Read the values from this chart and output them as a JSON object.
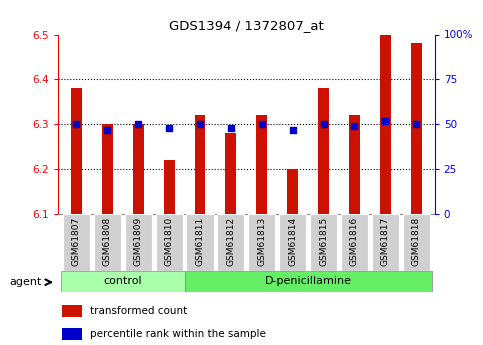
{
  "title": "GDS1394 / 1372807_at",
  "samples": [
    "GSM61807",
    "GSM61808",
    "GSM61809",
    "GSM61810",
    "GSM61811",
    "GSM61812",
    "GSM61813",
    "GSM61814",
    "GSM61815",
    "GSM61816",
    "GSM61817",
    "GSM61818"
  ],
  "transformed_counts": [
    6.38,
    6.3,
    6.3,
    6.22,
    6.32,
    6.28,
    6.32,
    6.2,
    6.38,
    6.32,
    6.5,
    6.48
  ],
  "percentile_ranks": [
    50,
    47,
    50,
    48,
    50,
    48,
    50,
    47,
    50,
    49,
    52,
    50
  ],
  "y_min": 6.1,
  "y_max": 6.5,
  "y_ticks": [
    6.1,
    6.2,
    6.3,
    6.4,
    6.5
  ],
  "y2_ticks": [
    0,
    25,
    50,
    75,
    100
  ],
  "y2_tick_labels": [
    "0",
    "25",
    "50",
    "75",
    "100%"
  ],
  "bar_color": "#cc1100",
  "dot_color": "#0000cc",
  "n_control": 4,
  "n_treatment": 8,
  "control_label": "control",
  "treatment_label": "D-penicillamine",
  "agent_label": "agent",
  "legend_bar_label": "transformed count",
  "legend_dot_label": "percentile rank within the sample",
  "control_bg": "#aaffaa",
  "treatment_bg": "#66ee66",
  "tick_bg": "#d0d0d0",
  "bar_width": 0.35,
  "baseline": 6.1
}
